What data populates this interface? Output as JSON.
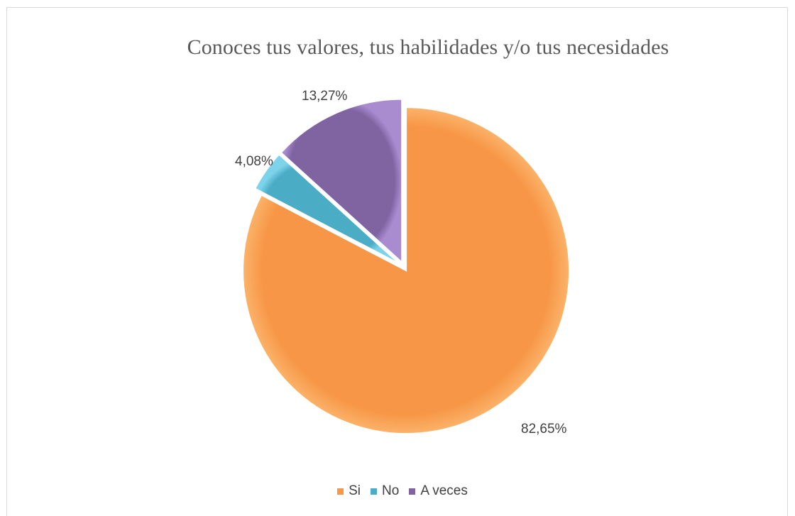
{
  "chart_data": {
    "type": "pie",
    "title": "Conoces tus valores, tus habilidades y/o tus necesidades",
    "categories": [
      "Si",
      "No",
      "A veces"
    ],
    "values": [
      82.65,
      4.08,
      13.27
    ],
    "data_labels": [
      "82,65%",
      "4,08%",
      "13,27%"
    ],
    "colors": [
      "#f79646",
      "#4bacc6",
      "#8064a2"
    ],
    "legend_position": "bottom",
    "exploded": true
  }
}
